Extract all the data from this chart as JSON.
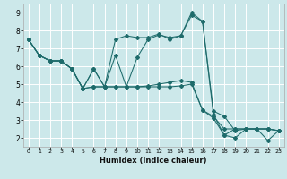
{
  "xlabel": "Humidex (Indice chaleur)",
  "bg_color": "#cce8ea",
  "grid_color": "#b0d8da",
  "line_color": "#1e6b6b",
  "xlim": [
    -0.5,
    23.5
  ],
  "ylim": [
    1.5,
    9.5
  ],
  "yticks": [
    2,
    3,
    4,
    5,
    6,
    7,
    8,
    9
  ],
  "xticks": [
    0,
    1,
    2,
    3,
    4,
    5,
    6,
    7,
    8,
    9,
    10,
    11,
    12,
    13,
    14,
    15,
    16,
    17,
    18,
    19,
    20,
    21,
    22,
    23
  ],
  "lines": [
    {
      "x": [
        0,
        1,
        2,
        3,
        4,
        5,
        6,
        7,
        8,
        9,
        10,
        11,
        12,
        13,
        14,
        15,
        16,
        17,
        18,
        19,
        20,
        21,
        22,
        23
      ],
      "y": [
        7.5,
        6.6,
        6.3,
        6.3,
        5.85,
        4.75,
        5.85,
        4.85,
        4.85,
        4.85,
        4.85,
        4.85,
        4.85,
        4.85,
        4.9,
        5.0,
        3.55,
        3.1,
        2.15,
        2.5,
        2.5,
        2.5,
        2.5,
        2.4
      ]
    },
    {
      "x": [
        0,
        1,
        2,
        3,
        4,
        5,
        6,
        7,
        8,
        9,
        10,
        11,
        12,
        13,
        14,
        15,
        16,
        17,
        18,
        19,
        20,
        21,
        22,
        23
      ],
      "y": [
        7.5,
        6.6,
        6.3,
        6.3,
        5.85,
        4.75,
        4.85,
        4.85,
        4.85,
        4.85,
        4.85,
        4.9,
        5.0,
        5.1,
        5.2,
        5.1,
        3.55,
        3.2,
        2.5,
        2.5,
        2.5,
        2.5,
        2.5,
        2.4
      ]
    },
    {
      "x": [
        0,
        1,
        2,
        3,
        4,
        5,
        6,
        7,
        8,
        9,
        10,
        11,
        12,
        13,
        14,
        15,
        16,
        17,
        18,
        19,
        20,
        21,
        22,
        23
      ],
      "y": [
        7.5,
        6.6,
        6.3,
        6.3,
        5.85,
        4.75,
        4.85,
        4.85,
        7.5,
        7.7,
        7.6,
        7.6,
        7.8,
        7.5,
        7.7,
        8.85,
        8.5,
        3.5,
        3.2,
        2.4,
        2.5,
        2.5,
        2.5,
        2.4
      ]
    },
    {
      "x": [
        0,
        1,
        2,
        3,
        4,
        5,
        6,
        7,
        8,
        9,
        10,
        11,
        12,
        13,
        14,
        15,
        16,
        17,
        18,
        19,
        20,
        21,
        22,
        23
      ],
      "y": [
        7.5,
        6.6,
        6.3,
        6.3,
        5.85,
        4.75,
        5.85,
        4.85,
        6.6,
        4.85,
        6.5,
        7.5,
        7.75,
        7.6,
        7.7,
        9.0,
        8.5,
        3.3,
        2.15,
        2.0,
        2.5,
        2.5,
        1.85,
        2.4
      ]
    }
  ]
}
